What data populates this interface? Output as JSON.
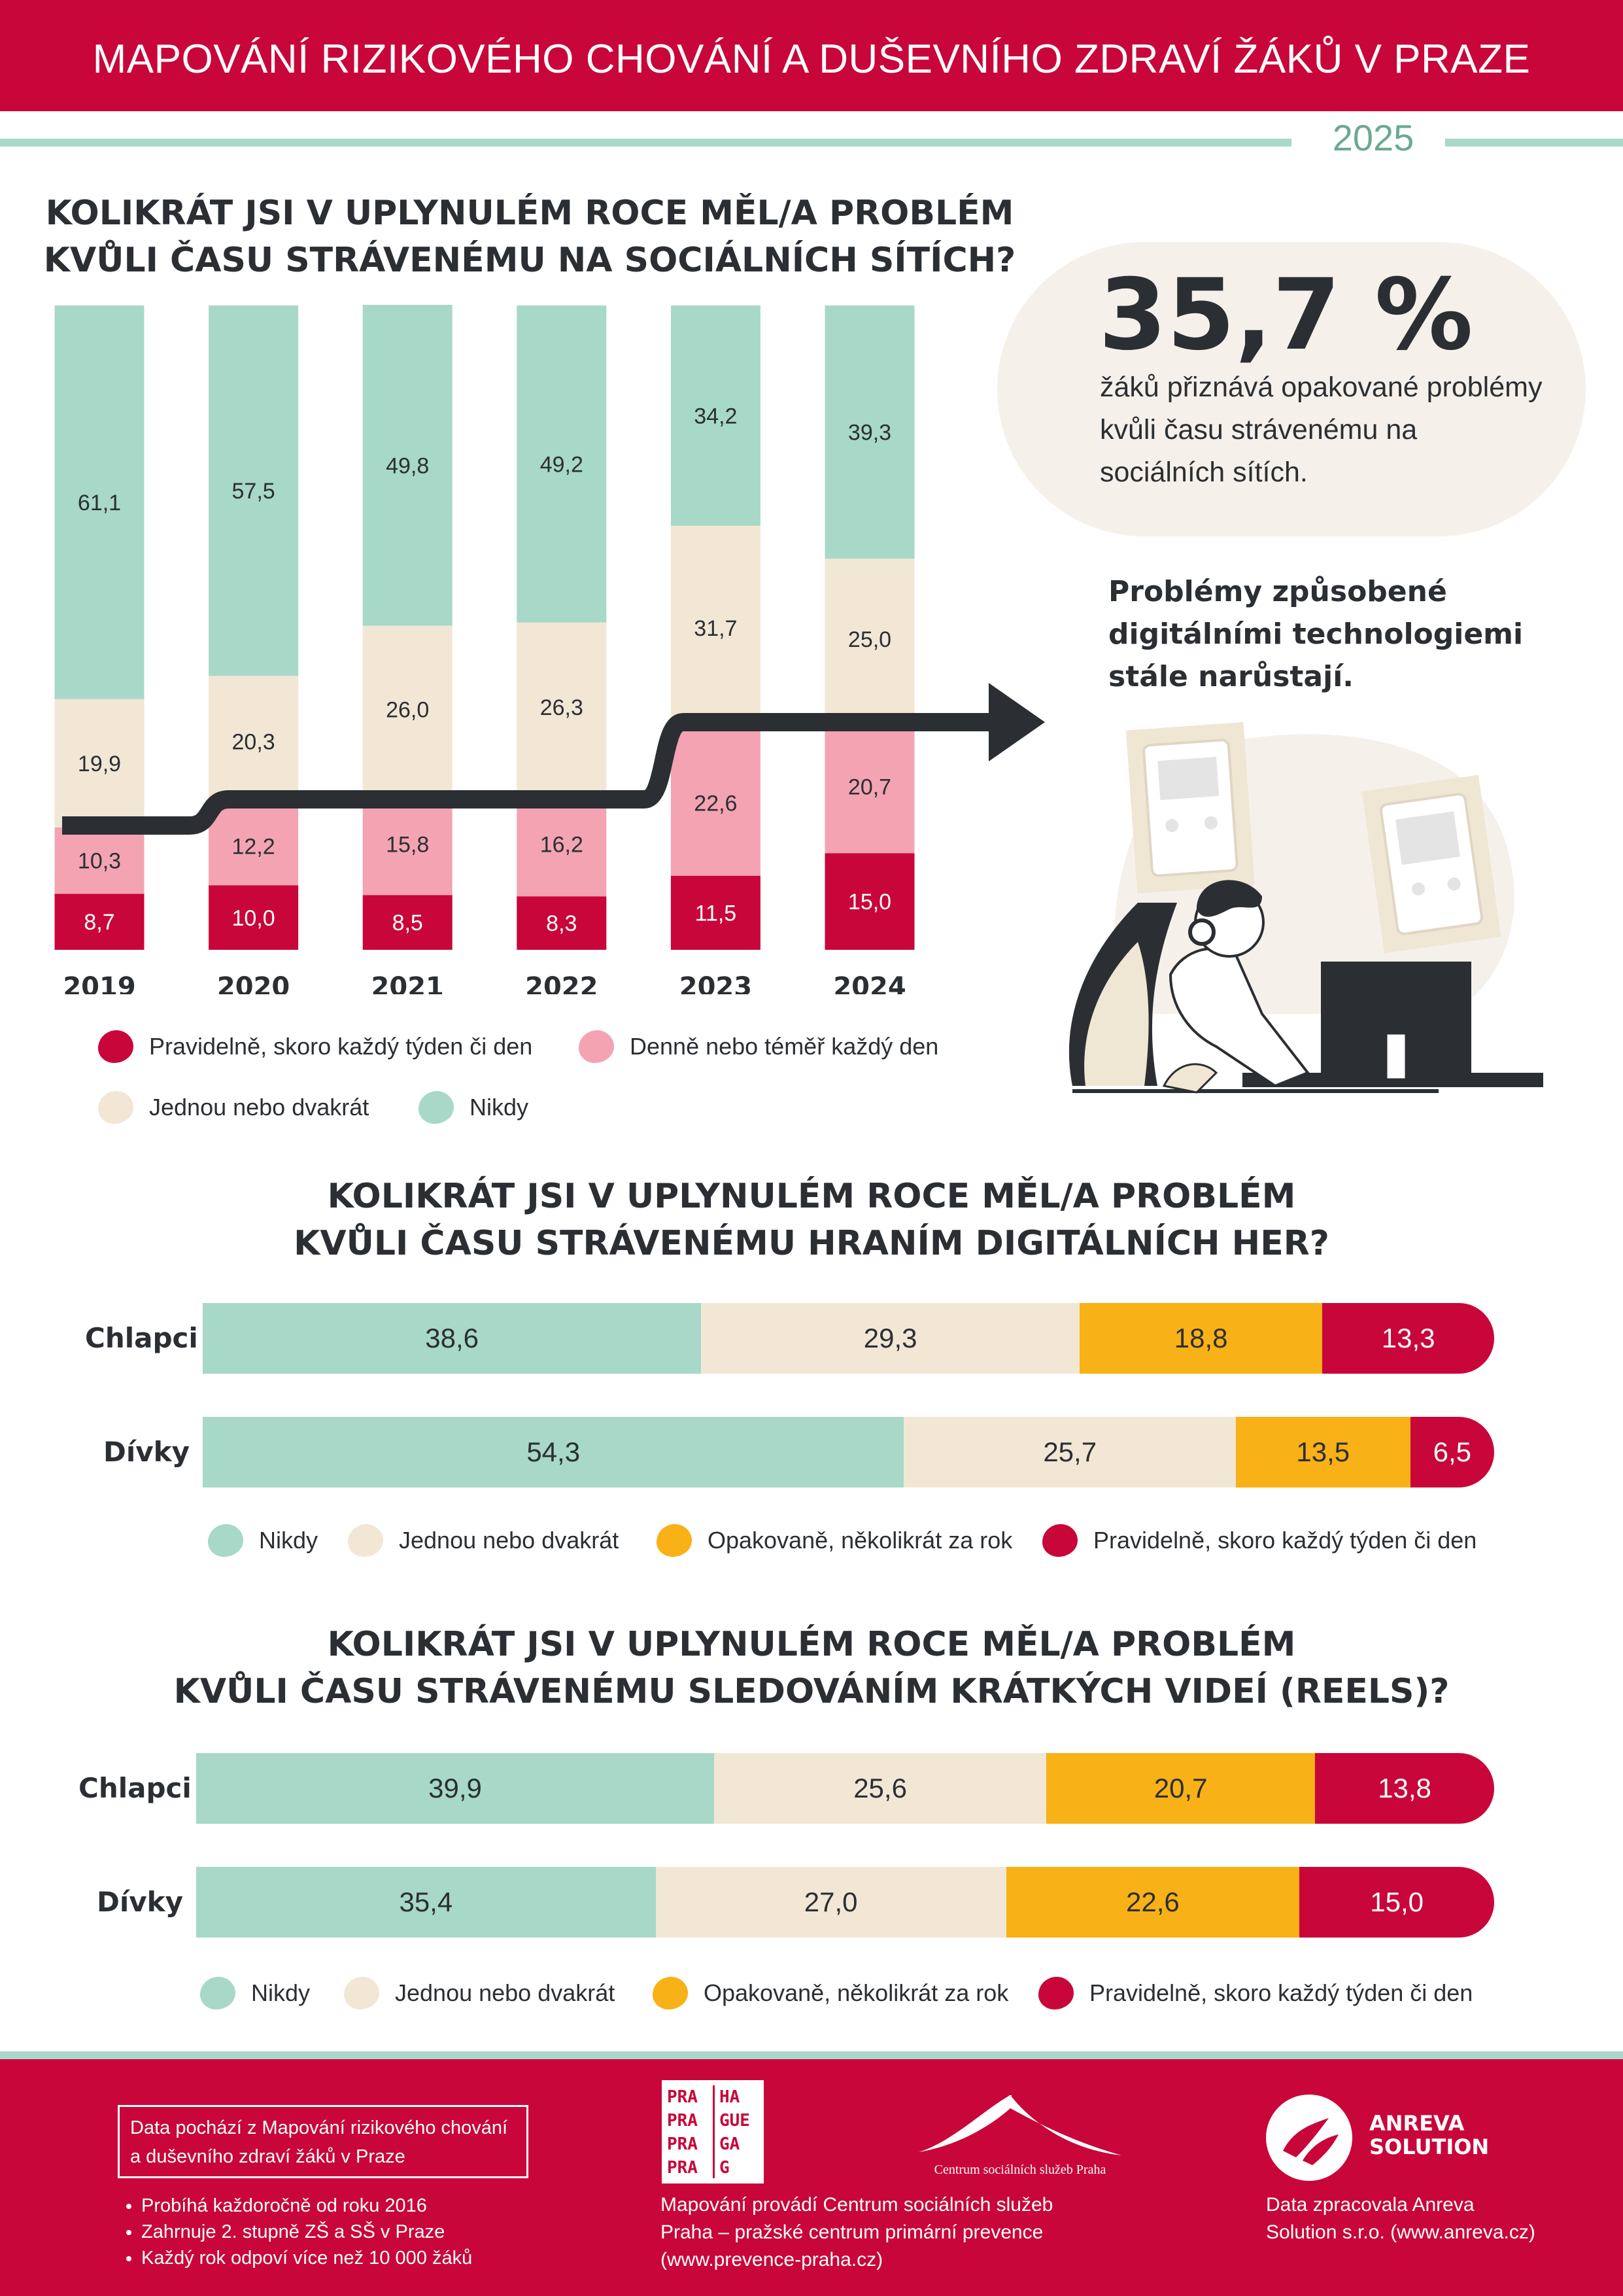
{
  "header": {
    "title": "MAPOVÁNÍ RIZIKOVÉHO CHOVÁNÍ A DUŠEVNÍHO ZDRAVÍ ŽÁKŮ V PRAZE",
    "year": "2025"
  },
  "colors": {
    "brand_red": "#c8063a",
    "mint": "#a8d8c7",
    "cream": "#f2e7d5",
    "pink": "#f4a3b2",
    "amber": "#f8b116",
    "dark": "#2b2f33"
  },
  "callout": {
    "value": "35,7 %",
    "text": "žáků přiznává opakované problémy kvůli času strávenému na sociálních sítích.",
    "trend": "Problémy způsobené digitálními technologiemi stále narůstají."
  },
  "section1": {
    "title_line1": "KOLIKRÁT JSI V UPLYNULÉM ROCE MĚL/A PROBLÉM",
    "title_line2": "KVŮLI ČASU STRÁVENÉMU NA SOCIÁLNÍCH SÍTÍCH?",
    "legend": [
      "Pravidelně, skoro každý týden či den",
      "Denně nebo téměř každý den",
      "Jednou nebo dvakrát",
      "Nikdy"
    ]
  },
  "section2": {
    "title_line1": "KOLIKRÁT JSI V UPLYNULÉM ROCE MĚL/A PROBLÉM",
    "title_line2": "KVŮLI ČASU STRÁVENÉMU HRANÍM DIGITÁLNÍCH HER?",
    "legend": [
      "Nikdy",
      "Jednou nebo dvakrát",
      "Opakovaně, několikrát za rok",
      "Pravidelně, skoro každý týden či den"
    ]
  },
  "section3": {
    "title_line1": "KOLIKRÁT JSI V UPLYNULÉM ROCE MĚL/A PROBLÉM",
    "title_line2": "KVŮLI ČASU STRÁVENÉMU SLEDOVÁNÍM KRÁTKÝCH VIDEÍ (REELS)?",
    "legend": [
      "Nikdy",
      "Jednou nebo dvakrát",
      "Opakovaně, několikrát za rok",
      "Pravidelně, skoro každý týden či den"
    ]
  },
  "chart_data": [
    {
      "type": "bar",
      "stacked": true,
      "orientation": "vertical",
      "categories": [
        "2019",
        "2020",
        "2021",
        "2022",
        "2023",
        "2024"
      ],
      "series": [
        {
          "name": "Pravidelně, skoro každý týden či den",
          "color": "#c8063a",
          "values": [
            8.7,
            10.0,
            8.5,
            8.3,
            11.5,
            15.0
          ],
          "labels": [
            "8,7",
            "10,0",
            "8,5",
            "8,3",
            "11,5",
            "15,0"
          ]
        },
        {
          "name": "Denně nebo téměř každý den",
          "color": "#f4a3b2",
          "values": [
            10.3,
            12.2,
            15.8,
            16.2,
            22.6,
            20.7
          ],
          "labels": [
            "10,3",
            "12,2",
            "15,8",
            "16,2",
            "22,6",
            "20,7"
          ]
        },
        {
          "name": "Jednou nebo dvakrát",
          "color": "#f2e7d5",
          "values": [
            19.9,
            20.3,
            26.0,
            26.3,
            31.7,
            25.0
          ],
          "labels": [
            "19,9",
            "20,3",
            "26,0",
            "26,3",
            "31,7",
            "25,0"
          ]
        },
        {
          "name": "Nikdy",
          "color": "#a8d8c7",
          "values": [
            61.1,
            57.5,
            49.8,
            49.2,
            34.2,
            39.3
          ],
          "labels": [
            "61,1",
            "57,5",
            "49,8",
            "49,2",
            "34,2",
            "39,3"
          ]
        }
      ],
      "ylim": [
        0,
        100
      ]
    },
    {
      "type": "bar",
      "stacked": true,
      "orientation": "horizontal",
      "categories": [
        "Chlapci",
        "Dívky"
      ],
      "series": [
        {
          "name": "Nikdy",
          "color": "#a8d8c7",
          "values": [
            38.6,
            54.3
          ],
          "labels": [
            "38,6",
            "54,3"
          ]
        },
        {
          "name": "Jednou nebo dvakrát",
          "color": "#f2e7d5",
          "values": [
            29.3,
            25.7
          ],
          "labels": [
            "29,3",
            "25,7"
          ]
        },
        {
          "name": "Opakovaně, několikrát za rok",
          "color": "#f8b116",
          "values": [
            18.8,
            13.5
          ],
          "labels": [
            "18,8",
            "13,5"
          ]
        },
        {
          "name": "Pravidelně, skoro každý týden či den",
          "color": "#c8063a",
          "values": [
            13.3,
            6.5
          ],
          "labels": [
            "13,3",
            "6,5"
          ]
        }
      ],
      "xlim": [
        0,
        100
      ]
    },
    {
      "type": "bar",
      "stacked": true,
      "orientation": "horizontal",
      "categories": [
        "Chlapci",
        "Dívky"
      ],
      "series": [
        {
          "name": "Nikdy",
          "color": "#a8d8c7",
          "values": [
            39.9,
            35.4
          ],
          "labels": [
            "39,9",
            "35,4"
          ]
        },
        {
          "name": "Jednou nebo dvakrát",
          "color": "#f2e7d5",
          "values": [
            25.6,
            27.0
          ],
          "labels": [
            "25,6",
            "27,0"
          ]
        },
        {
          "name": "Opakovaně, několikrát za rok",
          "color": "#f8b116",
          "values": [
            20.7,
            22.6
          ],
          "labels": [
            "20,7",
            "22,6"
          ]
        },
        {
          "name": "Pravidelně, skoro každý týden či den",
          "color": "#c8063a",
          "values": [
            13.8,
            15.0
          ],
          "labels": [
            "13,8",
            "15,0"
          ]
        }
      ],
      "xlim": [
        0,
        100
      ]
    }
  ],
  "footer": {
    "source_box": "Data pochází z Mapování rizikového chování a duševního zdraví žáků v Praze",
    "bullets": [
      "Probíhá každoročně od roku 2016",
      "Zahrnuje 2. stupně ZŠ a SŠ v Praze",
      "Každý rok odpoví více než 10 000 žáků"
    ],
    "praha_logo": [
      "PRA",
      "HA",
      "PRA",
      "GUE",
      "PRA",
      "GA",
      "PRA",
      "G"
    ],
    "centrum_logo_text": "Centrum sociálních služeb Praha",
    "centrum_text": "Mapování provádí Centrum sociálních služeb Praha – pražské centrum primární prevence (www.prevence-praha.cz)",
    "anreva_name_1": "ANREVA",
    "anreva_name_2": "SOLUTION",
    "anreva_text": "Data zpracovala Anreva Solution s.r.o. (www.anreva.cz)"
  }
}
